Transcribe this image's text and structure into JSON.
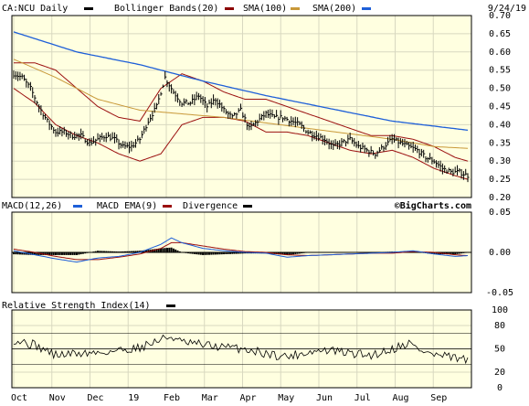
{
  "chart_data": [
    {
      "type": "ohlc",
      "symbol_label": "CA:NCU Daily",
      "date": "9/24/19",
      "watermark": "©BigCharts.com",
      "legend": [
        {
          "name": "CA:NCU Daily",
          "color": "#000000"
        },
        {
          "name": "Bollinger Bands(20)",
          "color": "#8b0000"
        },
        {
          "name": "SMA(100)",
          "color": "#8b0000"
        },
        {
          "name": "SMA(200)",
          "color": "#1e5fd8"
        }
      ],
      "colors": {
        "price": "#000000",
        "bollinger": "#9b1010",
        "sma100": "#c89838",
        "sma200": "#1e5fd8"
      },
      "ylim": [
        0.2,
        0.7
      ],
      "yticks": [
        "0.70",
        "0.65",
        "0.60",
        "0.55",
        "0.50",
        "0.45",
        "0.40",
        "0.35",
        "0.30",
        "0.25",
        "0.20"
      ],
      "x_index_range": [
        0,
        250
      ],
      "close_keypoints": [
        [
          0,
          0.54
        ],
        [
          8,
          0.53
        ],
        [
          16,
          0.5
        ],
        [
          24,
          0.45
        ],
        [
          32,
          0.41
        ],
        [
          40,
          0.38
        ],
        [
          48,
          0.38
        ],
        [
          56,
          0.37
        ],
        [
          64,
          0.37
        ],
        [
          72,
          0.35
        ],
        [
          80,
          0.36
        ],
        [
          88,
          0.37
        ],
        [
          96,
          0.36
        ],
        [
          104,
          0.34
        ],
        [
          112,
          0.34
        ],
        [
          120,
          0.36
        ],
        [
          128,
          0.41
        ],
        [
          136,
          0.45
        ],
        [
          144,
          0.53
        ],
        [
          152,
          0.49
        ],
        [
          160,
          0.46
        ],
        [
          168,
          0.46
        ],
        [
          176,
          0.48
        ],
        [
          184,
          0.45
        ],
        [
          192,
          0.47
        ],
        [
          200,
          0.44
        ],
        [
          208,
          0.42
        ],
        [
          216,
          0.44
        ],
        [
          224,
          0.39
        ],
        [
          232,
          0.41
        ],
        [
          240,
          0.43
        ],
        [
          248,
          0.42
        ]
      ],
      "close_keypoints_2": [
        [
          256,
          0.42
        ],
        [
          264,
          0.41
        ],
        [
          272,
          0.4
        ],
        [
          280,
          0.38
        ],
        [
          288,
          0.37
        ],
        [
          296,
          0.36
        ],
        [
          304,
          0.34
        ],
        [
          312,
          0.35
        ],
        [
          320,
          0.36
        ],
        [
          328,
          0.34
        ],
        [
          336,
          0.33
        ],
        [
          344,
          0.32
        ],
        [
          352,
          0.34
        ],
        [
          360,
          0.36
        ],
        [
          368,
          0.35
        ],
        [
          376,
          0.34
        ],
        [
          384,
          0.33
        ],
        [
          392,
          0.31
        ],
        [
          400,
          0.3
        ],
        [
          408,
          0.28
        ],
        [
          416,
          0.27
        ],
        [
          424,
          0.27
        ],
        [
          432,
          0.26
        ]
      ],
      "sma200_keypoints": [
        [
          0,
          0.655
        ],
        [
          60,
          0.6
        ],
        [
          120,
          0.565
        ],
        [
          180,
          0.52
        ],
        [
          240,
          0.48
        ],
        [
          300,
          0.445
        ],
        [
          360,
          0.41
        ],
        [
          432,
          0.385
        ]
      ],
      "sma100_keypoints": [
        [
          0,
          0.58
        ],
        [
          40,
          0.53
        ],
        [
          80,
          0.47
        ],
        [
          120,
          0.44
        ],
        [
          160,
          0.43
        ],
        [
          200,
          0.42
        ],
        [
          240,
          0.405
        ],
        [
          280,
          0.39
        ],
        [
          320,
          0.375
        ],
        [
          360,
          0.36
        ],
        [
          400,
          0.34
        ],
        [
          432,
          0.335
        ]
      ],
      "boll_upper_keypoints": [
        [
          0,
          0.57
        ],
        [
          20,
          0.57
        ],
        [
          40,
          0.55
        ],
        [
          60,
          0.5
        ],
        [
          80,
          0.45
        ],
        [
          100,
          0.42
        ],
        [
          120,
          0.41
        ],
        [
          140,
          0.5
        ],
        [
          160,
          0.54
        ],
        [
          180,
          0.52
        ],
        [
          200,
          0.49
        ],
        [
          220,
          0.47
        ],
        [
          240,
          0.47
        ],
        [
          260,
          0.45
        ],
        [
          280,
          0.43
        ],
        [
          300,
          0.41
        ],
        [
          320,
          0.39
        ],
        [
          340,
          0.37
        ],
        [
          360,
          0.37
        ],
        [
          380,
          0.36
        ],
        [
          400,
          0.34
        ],
        [
          420,
          0.31
        ],
        [
          432,
          0.3
        ]
      ],
      "boll_lower_keypoints": [
        [
          0,
          0.5
        ],
        [
          20,
          0.46
        ],
        [
          40,
          0.4
        ],
        [
          60,
          0.37
        ],
        [
          80,
          0.35
        ],
        [
          100,
          0.32
        ],
        [
          120,
          0.3
        ],
        [
          140,
          0.32
        ],
        [
          160,
          0.4
        ],
        [
          180,
          0.42
        ],
        [
          200,
          0.42
        ],
        [
          220,
          0.41
        ],
        [
          240,
          0.38
        ],
        [
          260,
          0.38
        ],
        [
          280,
          0.37
        ],
        [
          300,
          0.35
        ],
        [
          320,
          0.33
        ],
        [
          340,
          0.32
        ],
        [
          360,
          0.33
        ],
        [
          380,
          0.31
        ],
        [
          400,
          0.28
        ],
        [
          420,
          0.26
        ],
        [
          432,
          0.25
        ]
      ]
    },
    {
      "type": "line",
      "legend": [
        {
          "name": "MACD(12,26)",
          "color": "#000000"
        },
        {
          "name": "MACD EMA(9)",
          "color": "#1e5fd8"
        },
        {
          "name": "Divergence",
          "color": "#9b1010"
        }
      ],
      "colors": {
        "macd": "#1e5fd8",
        "ema": "#9b1010",
        "divergence": "#000000"
      },
      "ylim": [
        -0.05,
        0.05
      ],
      "yticks": [
        "0.05",
        "0.00",
        "-0.05"
      ],
      "macd_keypoints": [
        [
          0,
          0.002
        ],
        [
          20,
          -0.003
        ],
        [
          40,
          -0.008
        ],
        [
          60,
          -0.012
        ],
        [
          80,
          -0.007
        ],
        [
          100,
          -0.005
        ],
        [
          120,
          0.0
        ],
        [
          140,
          0.01
        ],
        [
          150,
          0.018
        ],
        [
          160,
          0.012
        ],
        [
          180,
          0.005
        ],
        [
          200,
          0.002
        ],
        [
          220,
          0.0
        ],
        [
          240,
          -0.001
        ],
        [
          260,
          -0.006
        ],
        [
          280,
          -0.004
        ],
        [
          300,
          -0.003
        ],
        [
          320,
          -0.002
        ],
        [
          340,
          -0.001
        ],
        [
          360,
          0.0
        ],
        [
          380,
          0.002
        ],
        [
          400,
          -0.002
        ],
        [
          420,
          -0.005
        ],
        [
          432,
          -0.004
        ]
      ],
      "ema_keypoints": [
        [
          0,
          0.004
        ],
        [
          20,
          0.0
        ],
        [
          40,
          -0.005
        ],
        [
          60,
          -0.009
        ],
        [
          80,
          -0.009
        ],
        [
          100,
          -0.006
        ],
        [
          120,
          -0.002
        ],
        [
          140,
          0.005
        ],
        [
          150,
          0.012
        ],
        [
          160,
          0.012
        ],
        [
          180,
          0.008
        ],
        [
          200,
          0.004
        ],
        [
          220,
          0.001
        ],
        [
          240,
          0.0
        ],
        [
          260,
          -0.003
        ],
        [
          280,
          -0.004
        ],
        [
          300,
          -0.003
        ],
        [
          320,
          -0.002
        ],
        [
          340,
          -0.001
        ],
        [
          360,
          -0.001
        ],
        [
          380,
          0.001
        ],
        [
          400,
          0.0
        ],
        [
          420,
          -0.003
        ],
        [
          432,
          -0.004
        ]
      ]
    },
    {
      "type": "line",
      "legend": [
        {
          "name": "Relative Strength Index(14)",
          "color": "#000000"
        }
      ],
      "ylim": [
        0,
        100
      ],
      "yticks": [
        "100",
        "80",
        "50",
        "20",
        "0"
      ],
      "reference_lines": [
        30,
        50,
        70
      ],
      "rsi_keypoints": [
        [
          0,
          62
        ],
        [
          20,
          55
        ],
        [
          40,
          42
        ],
        [
          60,
          44
        ],
        [
          80,
          45
        ],
        [
          100,
          48
        ],
        [
          120,
          52
        ],
        [
          140,
          62
        ],
        [
          150,
          66
        ],
        [
          160,
          58
        ],
        [
          180,
          55
        ],
        [
          200,
          52
        ],
        [
          220,
          50
        ],
        [
          240,
          44
        ],
        [
          260,
          40
        ],
        [
          280,
          46
        ],
        [
          300,
          48
        ],
        [
          320,
          44
        ],
        [
          340,
          42
        ],
        [
          360,
          50
        ],
        [
          376,
          58
        ],
        [
          384,
          50
        ],
        [
          400,
          42
        ],
        [
          420,
          38
        ],
        [
          432,
          35
        ]
      ]
    }
  ],
  "x_labels": [
    "Oct",
    "Nov",
    "Dec",
    "19",
    "Feb",
    "Mar",
    "Apr",
    "May",
    "Jun",
    "Jul",
    "Aug",
    "Sep"
  ],
  "x_label_index": [
    0,
    21,
    42,
    63,
    84,
    105,
    126,
    147,
    168,
    189,
    210,
    231
  ]
}
